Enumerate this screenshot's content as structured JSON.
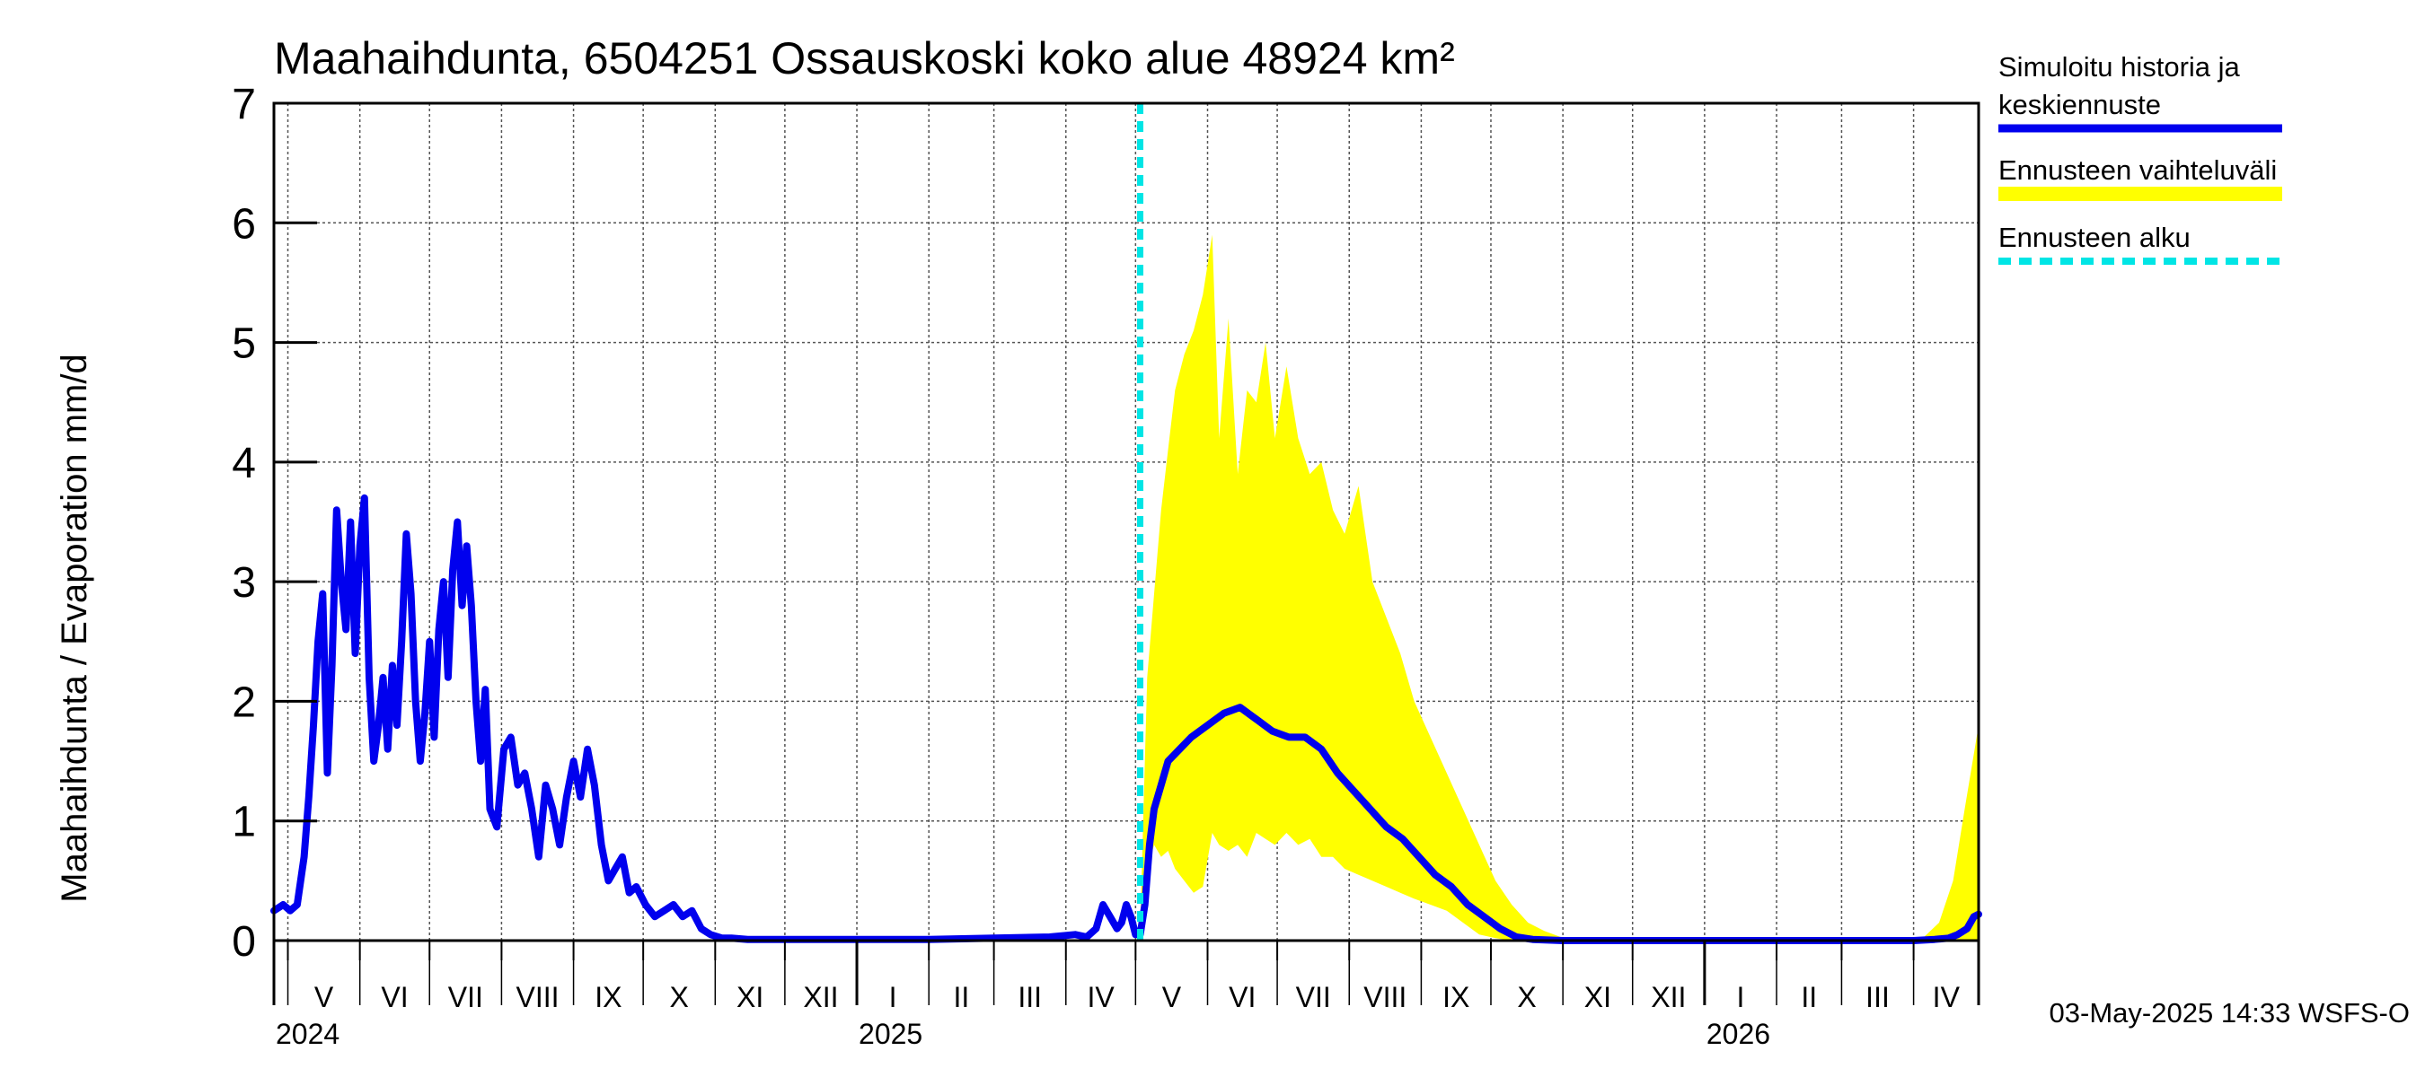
{
  "chart_data": {
    "type": "line",
    "title": "Maahaihdunta, 6504251 Ossauskoski koko alue 48924 km²",
    "ylabel": "Maahaihdunta / Evaporation   mm/d",
    "ylim": [
      0,
      7
    ],
    "yticks": [
      0,
      1,
      2,
      3,
      4,
      5,
      6,
      7
    ],
    "xlim": [
      "2024-04-25",
      "2026-04-29"
    ],
    "grid": true,
    "legend_position": "right",
    "forecast_start": "2025-05-03",
    "month_labels": [
      {
        "label": "V",
        "month": "2024-05"
      },
      {
        "label": "VI",
        "month": "2024-06"
      },
      {
        "label": "VII",
        "month": "2024-07"
      },
      {
        "label": "VIII",
        "month": "2024-08"
      },
      {
        "label": "IX",
        "month": "2024-09"
      },
      {
        "label": "X",
        "month": "2024-10"
      },
      {
        "label": "XI",
        "month": "2024-11"
      },
      {
        "label": "XII",
        "month": "2024-12"
      },
      {
        "label": "I",
        "month": "2025-01"
      },
      {
        "label": "II",
        "month": "2025-02"
      },
      {
        "label": "III",
        "month": "2025-03"
      },
      {
        "label": "IV",
        "month": "2025-04"
      },
      {
        "label": "V",
        "month": "2025-05"
      },
      {
        "label": "VI",
        "month": "2025-06"
      },
      {
        "label": "VII",
        "month": "2025-07"
      },
      {
        "label": "VIII",
        "month": "2025-08"
      },
      {
        "label": "IX",
        "month": "2025-09"
      },
      {
        "label": "X",
        "month": "2025-10"
      },
      {
        "label": "XI",
        "month": "2025-11"
      },
      {
        "label": "XII",
        "month": "2025-12"
      },
      {
        "label": "I",
        "month": "2026-01"
      },
      {
        "label": "II",
        "month": "2026-02"
      },
      {
        "label": "III",
        "month": "2026-03"
      },
      {
        "label": "IV",
        "month": "2026-04"
      }
    ],
    "year_labels": [
      {
        "label": "2024",
        "date": "2024-04-25"
      },
      {
        "label": "2025",
        "date": "2025-01-01"
      },
      {
        "label": "2026",
        "date": "2026-01-01"
      }
    ],
    "series": [
      {
        "name": "Simuloitu historia ja keskiennuste",
        "color": "#0000ee",
        "x": [
          "2024-04-25",
          "2024-04-29",
          "2024-05-02",
          "2024-05-05",
          "2024-05-08",
          "2024-05-10",
          "2024-05-12",
          "2024-05-14",
          "2024-05-16",
          "2024-05-18",
          "2024-05-20",
          "2024-05-22",
          "2024-05-24",
          "2024-05-26",
          "2024-05-28",
          "2024-05-30",
          "2024-06-01",
          "2024-06-03",
          "2024-06-05",
          "2024-06-07",
          "2024-06-09",
          "2024-06-11",
          "2024-06-13",
          "2024-06-15",
          "2024-06-17",
          "2024-06-19",
          "2024-06-21",
          "2024-06-23",
          "2024-06-25",
          "2024-06-27",
          "2024-06-29",
          "2024-07-01",
          "2024-07-03",
          "2024-07-05",
          "2024-07-07",
          "2024-07-09",
          "2024-07-11",
          "2024-07-13",
          "2024-07-15",
          "2024-07-17",
          "2024-07-19",
          "2024-07-21",
          "2024-07-23",
          "2024-07-25",
          "2024-07-27",
          "2024-07-30",
          "2024-08-02",
          "2024-08-05",
          "2024-08-08",
          "2024-08-11",
          "2024-08-14",
          "2024-08-17",
          "2024-08-20",
          "2024-08-23",
          "2024-08-26",
          "2024-08-29",
          "2024-09-01",
          "2024-09-04",
          "2024-09-07",
          "2024-09-10",
          "2024-09-13",
          "2024-09-16",
          "2024-09-19",
          "2024-09-22",
          "2024-09-25",
          "2024-09-28",
          "2024-10-02",
          "2024-10-06",
          "2024-10-10",
          "2024-10-14",
          "2024-10-18",
          "2024-10-22",
          "2024-10-26",
          "2024-10-30",
          "2024-11-04",
          "2024-11-08",
          "2024-11-15",
          "2024-12-01",
          "2025-01-01",
          "2025-02-01",
          "2025-03-01",
          "2025-03-25",
          "2025-04-05",
          "2025-04-10",
          "2025-04-14",
          "2025-04-17",
          "2025-04-20",
          "2025-04-23",
          "2025-04-25",
          "2025-04-27",
          "2025-04-29",
          "2025-05-01",
          "2025-05-03",
          "2025-05-05",
          "2025-05-07",
          "2025-05-09",
          "2025-05-12",
          "2025-05-15",
          "2025-05-20",
          "2025-05-25",
          "2025-06-01",
          "2025-06-08",
          "2025-06-15",
          "2025-06-22",
          "2025-06-29",
          "2025-07-06",
          "2025-07-13",
          "2025-07-20",
          "2025-07-27",
          "2025-08-03",
          "2025-08-10",
          "2025-08-17",
          "2025-08-24",
          "2025-08-31",
          "2025-09-07",
          "2025-09-14",
          "2025-09-21",
          "2025-09-28",
          "2025-10-05",
          "2025-10-12",
          "2025-10-19",
          "2025-11-01",
          "2025-12-01",
          "2026-01-01",
          "2026-02-01",
          "2026-03-01",
          "2026-04-01",
          "2026-04-10",
          "2026-04-16",
          "2026-04-20",
          "2026-04-24",
          "2026-04-27",
          "2026-04-29"
        ],
        "y": [
          0.25,
          0.3,
          0.25,
          0.3,
          0.7,
          1.2,
          1.8,
          2.5,
          2.9,
          1.4,
          2.3,
          3.6,
          3.0,
          2.6,
          3.5,
          2.4,
          3.3,
          3.7,
          2.2,
          1.5,
          1.8,
          2.2,
          1.6,
          2.3,
          1.8,
          2.5,
          3.4,
          2.9,
          2.0,
          1.5,
          1.9,
          2.5,
          1.7,
          2.6,
          3.0,
          2.2,
          3.1,
          3.5,
          2.8,
          3.3,
          2.8,
          2.0,
          1.5,
          2.1,
          1.1,
          0.95,
          1.6,
          1.7,
          1.3,
          1.4,
          1.1,
          0.7,
          1.3,
          1.1,
          0.8,
          1.2,
          1.5,
          1.2,
          1.6,
          1.3,
          0.8,
          0.5,
          0.6,
          0.7,
          0.4,
          0.45,
          0.3,
          0.2,
          0.25,
          0.3,
          0.2,
          0.25,
          0.1,
          0.05,
          0.02,
          0.02,
          0.01,
          0.01,
          0.01,
          0.01,
          0.02,
          0.03,
          0.05,
          0.03,
          0.1,
          0.3,
          0.2,
          0.1,
          0.15,
          0.3,
          0.2,
          0.05,
          0.05,
          0.3,
          0.8,
          1.1,
          1.3,
          1.5,
          1.6,
          1.7,
          1.8,
          1.9,
          1.95,
          1.85,
          1.75,
          1.7,
          1.7,
          1.6,
          1.4,
          1.25,
          1.1,
          0.95,
          0.85,
          0.7,
          0.55,
          0.45,
          0.3,
          0.2,
          0.1,
          0.03,
          0.01,
          0.0,
          0.0,
          0.0,
          0.0,
          0.0,
          0.0,
          0.01,
          0.02,
          0.05,
          0.1,
          0.2,
          0.22
        ]
      },
      {
        "name": "Ennusteen vaihteluväli",
        "color": "#ffff00",
        "x": [
          "2025-05-03",
          "2025-05-06",
          "2025-05-09",
          "2025-05-12",
          "2025-05-15",
          "2025-05-18",
          "2025-05-22",
          "2025-05-26",
          "2025-05-30",
          "2025-06-03",
          "2025-06-06",
          "2025-06-10",
          "2025-06-14",
          "2025-06-18",
          "2025-06-22",
          "2025-06-26",
          "2025-06-30",
          "2025-07-05",
          "2025-07-10",
          "2025-07-15",
          "2025-07-20",
          "2025-07-25",
          "2025-07-30",
          "2025-08-05",
          "2025-08-11",
          "2025-08-17",
          "2025-08-23",
          "2025-08-29",
          "2025-09-05",
          "2025-09-12",
          "2025-09-19",
          "2025-09-26",
          "2025-10-03",
          "2025-10-10",
          "2025-10-17",
          "2025-10-24",
          "2025-10-31",
          "2025-11-05",
          "2026-03-25",
          "2026-04-05",
          "2026-04-12",
          "2026-04-18",
          "2026-04-23",
          "2026-04-29"
        ],
        "lower": [
          0.05,
          0.6,
          0.8,
          0.7,
          0.75,
          0.6,
          0.5,
          0.4,
          0.45,
          0.9,
          0.8,
          0.75,
          0.8,
          0.7,
          0.9,
          0.85,
          0.8,
          0.9,
          0.8,
          0.85,
          0.7,
          0.7,
          0.6,
          0.55,
          0.5,
          0.45,
          0.4,
          0.35,
          0.3,
          0.25,
          0.15,
          0.05,
          0.02,
          0.0,
          0.0,
          0.0,
          0.0,
          0.0,
          0.0,
          0.0,
          0.0,
          0.0,
          0.0,
          0.0
        ],
        "upper": [
          0.1,
          2.2,
          2.9,
          3.6,
          4.1,
          4.6,
          4.9,
          5.1,
          5.4,
          5.9,
          4.2,
          5.2,
          3.9,
          4.6,
          4.5,
          5.0,
          4.2,
          4.8,
          4.2,
          3.9,
          4.0,
          3.6,
          3.4,
          3.8,
          3.0,
          2.7,
          2.4,
          2.0,
          1.7,
          1.4,
          1.1,
          0.8,
          0.5,
          0.3,
          0.15,
          0.08,
          0.03,
          0.0,
          0.0,
          0.02,
          0.15,
          0.5,
          1.1,
          1.8
        ]
      },
      {
        "name": "Ennusteen alku",
        "color": "#00e5e5"
      }
    ]
  },
  "footer": {
    "timestamp": "03-May-2025 14:33 WSFS-O"
  },
  "legend": {
    "simulated_line1": "Simuloitu historia ja",
    "simulated_line2": "keskiennuste",
    "range_label": "Ennusteen vaihteluväli",
    "start_label": "Ennusteen alku"
  }
}
